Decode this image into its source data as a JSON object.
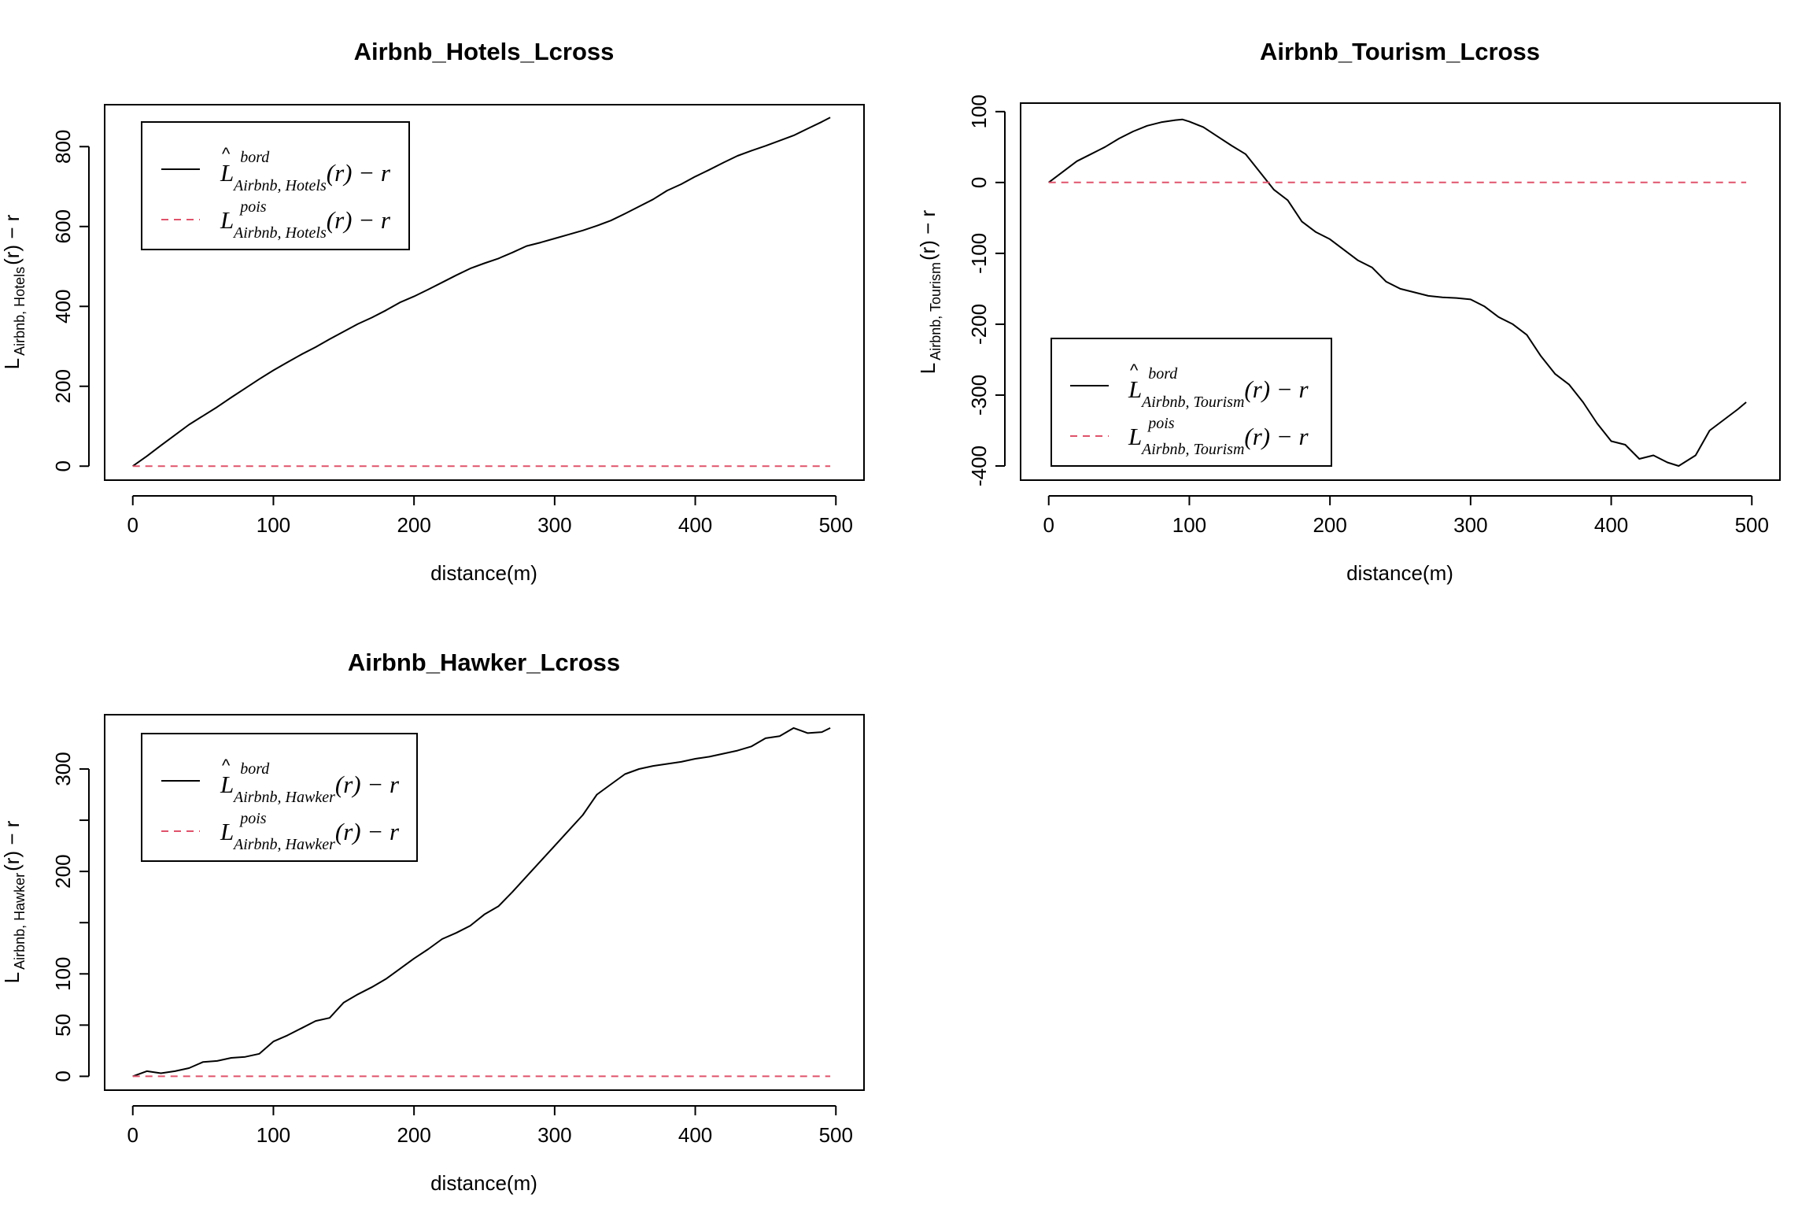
{
  "figure": {
    "background": "#ffffff",
    "line_color": "#000000",
    "reference_color": "#df536b"
  },
  "chart_data": [
    {
      "id": "hotels",
      "type": "line",
      "title": "Airbnb_Hotels_Lcross",
      "xlabel": "distance(m)",
      "ylabel": {
        "base": "L",
        "sub": "Airbnb, Hotels",
        "rest": "(r) − r"
      },
      "xlim": [
        -20,
        520
      ],
      "ylim": [
        -35,
        905
      ],
      "xticks": [
        0,
        100,
        200,
        300,
        400,
        500
      ],
      "yticks": [
        0,
        200,
        400,
        600,
        800
      ],
      "xtick_labels": [
        "0",
        "100",
        "200",
        "300",
        "400",
        "500"
      ],
      "ytick_labels": [
        "0",
        "200",
        "400",
        "600",
        "800"
      ],
      "legend_position": "top-left",
      "legend": [
        {
          "sup": "bord",
          "sub": "Airbnb, Hotels",
          "rest": "(r) − r",
          "style": "solid"
        },
        {
          "sup": "pois",
          "sub": "Airbnb, Hotels",
          "rest": "(r) − r",
          "style": "dashed"
        }
      ],
      "series": [
        {
          "style": "solid",
          "x": [
            0,
            10,
            20,
            30,
            40,
            50,
            60,
            70,
            80,
            90,
            100,
            110,
            120,
            130,
            140,
            150,
            160,
            170,
            180,
            190,
            200,
            210,
            220,
            230,
            240,
            250,
            260,
            270,
            280,
            290,
            300,
            310,
            320,
            330,
            340,
            350,
            360,
            370,
            380,
            390,
            400,
            410,
            420,
            430,
            440,
            450,
            460,
            470,
            480,
            490,
            496
          ],
          "y": [
            0,
            25,
            52,
            78,
            104,
            126,
            148,
            172,
            195,
            218,
            240,
            260,
            280,
            298,
            318,
            337,
            356,
            372,
            390,
            410,
            425,
            442,
            460,
            478,
            495,
            508,
            520,
            535,
            551,
            560,
            570,
            580,
            590,
            602,
            615,
            632,
            650,
            668,
            690,
            706,
            725,
            742,
            760,
            777,
            790,
            802,
            815,
            828,
            845,
            862,
            873
          ]
        },
        {
          "style": "dashed",
          "x": [
            0,
            496
          ],
          "y": [
            0,
            0
          ]
        }
      ]
    },
    {
      "id": "tourism",
      "type": "line",
      "title": "Airbnb_Tourism_Lcross",
      "xlabel": "distance(m)",
      "ylabel": {
        "base": "L",
        "sub": "Airbnb, Tourism",
        "rest": "(r) − r"
      },
      "xlim": [
        -20,
        520
      ],
      "ylim": [
        -420,
        112
      ],
      "xticks": [
        0,
        100,
        200,
        300,
        400,
        500
      ],
      "yticks": [
        -400,
        -300,
        -200,
        -100,
        0,
        100
      ],
      "xtick_labels": [
        "0",
        "100",
        "200",
        "300",
        "400",
        "500"
      ],
      "ytick_labels": [
        "-400",
        "-300",
        "-200",
        "-100",
        "0",
        "100"
      ],
      "legend_position": "bottom-left",
      "legend": [
        {
          "sup": "bord",
          "sub": "Airbnb, Tourism",
          "rest": "(r) − r",
          "style": "solid"
        },
        {
          "sup": "pois",
          "sub": "Airbnb, Tourism",
          "rest": "(r) − r",
          "style": "dashed"
        }
      ],
      "series": [
        {
          "style": "solid",
          "x": [
            0,
            10,
            20,
            30,
            40,
            50,
            60,
            70,
            80,
            90,
            95,
            100,
            110,
            120,
            130,
            140,
            150,
            160,
            170,
            180,
            190,
            200,
            210,
            220,
            230,
            240,
            250,
            260,
            270,
            280,
            290,
            300,
            310,
            320,
            330,
            340,
            350,
            360,
            370,
            380,
            390,
            400,
            410,
            420,
            430,
            440,
            448,
            460,
            470,
            480,
            490,
            496
          ],
          "y": [
            0,
            15,
            30,
            40,
            50,
            62,
            72,
            80,
            85,
            88,
            89,
            86,
            78,
            65,
            52,
            40,
            15,
            -10,
            -25,
            -55,
            -70,
            -80,
            -95,
            -110,
            -120,
            -140,
            -150,
            -155,
            -160,
            -162,
            -163,
            -165,
            -175,
            -190,
            -200,
            -215,
            -245,
            -270,
            -285,
            -310,
            -340,
            -365,
            -370,
            -390,
            -385,
            -395,
            -400,
            -385,
            -350,
            -335,
            -320,
            -310
          ]
        },
        {
          "style": "dashed",
          "x": [
            0,
            496
          ],
          "y": [
            0,
            0
          ]
        }
      ]
    },
    {
      "id": "hawker",
      "type": "line",
      "title": "Airbnb_Hawker_Lcross",
      "xlabel": "distance(m)",
      "ylabel": {
        "base": "L",
        "sub": "Airbnb, Hawker",
        "rest": "(r) − r"
      },
      "xlim": [
        -20,
        520
      ],
      "ylim": [
        -13.5,
        353
      ],
      "xticks": [
        0,
        100,
        200,
        300,
        400,
        500
      ],
      "yticks": [
        0,
        50,
        100,
        150,
        200,
        250,
        300
      ],
      "xtick_labels": [
        "0",
        "100",
        "200",
        "300",
        "400",
        "500"
      ],
      "ytick_labels": [
        "0",
        "50",
        "100",
        "",
        "200",
        "",
        "300"
      ],
      "legend_position": "top-left",
      "legend": [
        {
          "sup": "bord",
          "sub": "Airbnb, Hawker",
          "rest": "(r) − r",
          "style": "solid"
        },
        {
          "sup": "pois",
          "sub": "Airbnb, Hawker",
          "rest": "(r) − r",
          "style": "dashed"
        }
      ],
      "series": [
        {
          "style": "solid",
          "x": [
            0,
            10,
            20,
            30,
            40,
            50,
            60,
            70,
            80,
            90,
            100,
            110,
            120,
            130,
            140,
            150,
            160,
            170,
            180,
            190,
            200,
            210,
            220,
            230,
            240,
            250,
            260,
            270,
            280,
            290,
            300,
            310,
            320,
            330,
            340,
            350,
            360,
            370,
            380,
            390,
            400,
            410,
            420,
            430,
            440,
            450,
            460,
            470,
            480,
            490,
            496
          ],
          "y": [
            0,
            5,
            3,
            5,
            8,
            14,
            15,
            18,
            19,
            22,
            34,
            40,
            47,
            54,
            57,
            72,
            80,
            87,
            95,
            105,
            115,
            124,
            134,
            140,
            147,
            158,
            166,
            180,
            195,
            210,
            225,
            240,
            255,
            275,
            285,
            295,
            300,
            303,
            305,
            307,
            310,
            312,
            315,
            318,
            322,
            330,
            332,
            340,
            335,
            336,
            340
          ]
        },
        {
          "style": "dashed",
          "x": [
            0,
            496
          ],
          "y": [
            0,
            0
          ]
        }
      ]
    }
  ]
}
